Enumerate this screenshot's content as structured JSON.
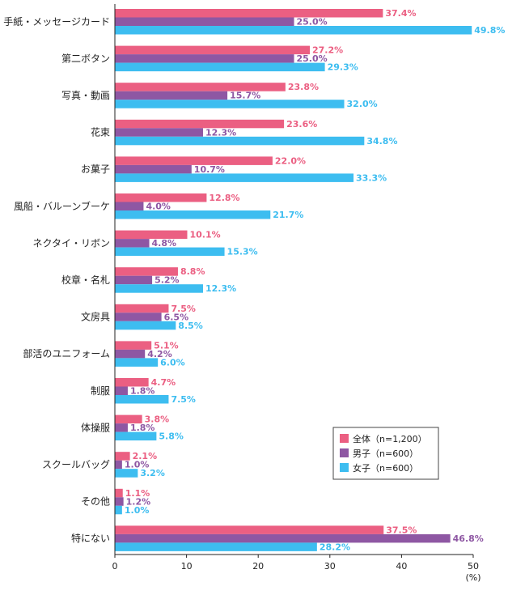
{
  "chart_data": {
    "type": "bar",
    "orientation": "horizontal",
    "categories": [
      "手紙・メッセージカード",
      "第二ボタン",
      "写真・動画",
      "花束",
      "お菓子",
      "風船・バルーンブーケ",
      "ネクタイ・リボン",
      "校章・名札",
      "文房具",
      "部活のユニフォーム",
      "制服",
      "体操服",
      "スクールバッグ",
      "その他",
      "特にない"
    ],
    "series": [
      {
        "name": "全体（n=1,200）",
        "color": "#eb5f82",
        "values": [
          37.4,
          27.2,
          23.8,
          23.6,
          22.0,
          12.8,
          10.1,
          8.8,
          7.5,
          5.1,
          4.7,
          3.8,
          2.1,
          1.1,
          37.5
        ]
      },
      {
        "name": "男子（n=600）",
        "color": "#8e57a3",
        "values": [
          25.0,
          25.0,
          15.7,
          12.3,
          10.7,
          4.0,
          4.8,
          5.2,
          6.5,
          4.2,
          1.8,
          1.8,
          1.0,
          1.2,
          46.8
        ]
      },
      {
        "name": "女子（n=600）",
        "color": "#3dbdf0",
        "values": [
          49.8,
          29.3,
          32.0,
          34.8,
          33.3,
          21.7,
          15.3,
          12.3,
          8.5,
          6.0,
          7.5,
          5.8,
          3.2,
          1.0,
          28.2
        ]
      }
    ],
    "value_labels": [
      [
        "37.4%",
        "27.2%",
        "23.8%",
        "23.6%",
        "22.0%",
        "12.8%",
        "10.1%",
        "8.8%",
        "7.5%",
        "5.1%",
        "4.7%",
        "3.8%",
        "2.1%",
        "1.1%",
        "37.5%"
      ],
      [
        "25.0%",
        "25.0%",
        "15.7%",
        "12.3%",
        "10.7%",
        "4.0%",
        "4.8%",
        "5.2%",
        "6.5%",
        "4.2%",
        "1.8%",
        "1.8%",
        "1.0%",
        "1.2%",
        "46.8%"
      ],
      [
        "49.8%",
        "29.3%",
        "32.0%",
        "34.8%",
        "33.3%",
        "21.7%",
        "15.3%",
        "12.3%",
        "8.5%",
        "6.0%",
        "7.5%",
        "5.8%",
        "3.2%",
        "1.0%",
        "28.2%"
      ]
    ],
    "xlim": [
      0,
      50
    ],
    "x_ticks": [
      "0",
      "10",
      "20",
      "30",
      "40",
      "50"
    ],
    "x_unit": "(%)",
    "legend_position": "bottom-right",
    "grid": false
  }
}
